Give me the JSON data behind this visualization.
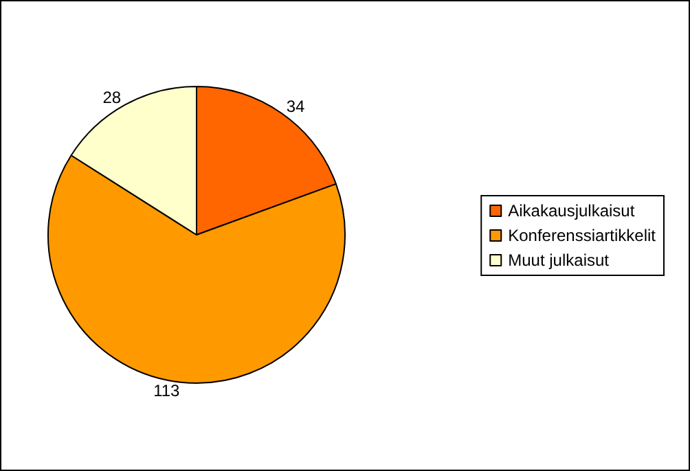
{
  "chart_data": {
    "type": "pie",
    "categories": [
      "Aikakausjulkaisut",
      "Konferenssiartikkelit",
      "Muut julkaisut"
    ],
    "values": [
      34,
      113,
      28
    ],
    "colors": [
      "#ff6600",
      "#ff9900",
      "#ffffcc"
    ],
    "data_labels": true,
    "legend": "right"
  }
}
